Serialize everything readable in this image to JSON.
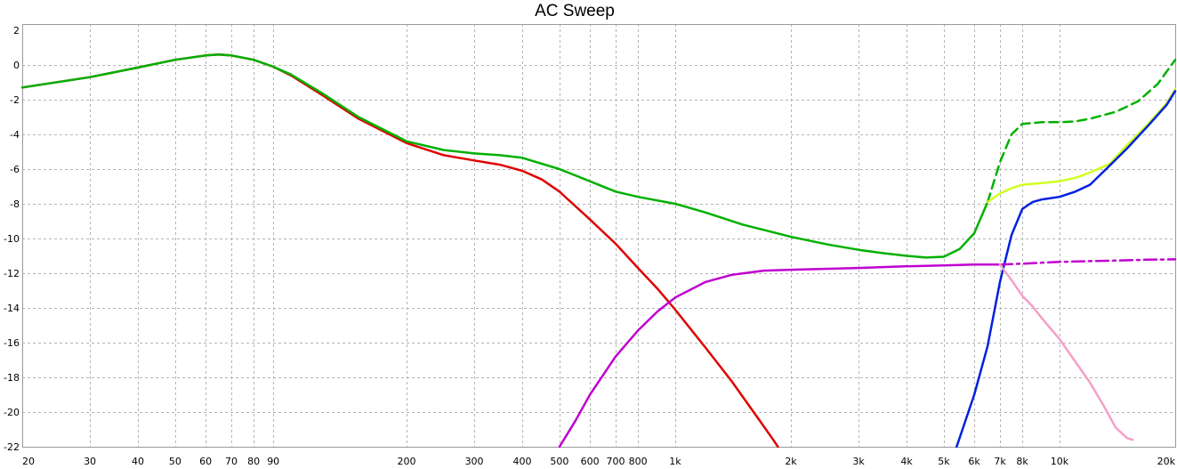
{
  "chart_data": {
    "type": "line",
    "title": "AC Sweep",
    "xscale": "log",
    "xlim": [
      20,
      20000
    ],
    "ylim": [
      -22,
      2
    ],
    "grid": true,
    "xticks": [
      {
        "value": 20,
        "label": "20"
      },
      {
        "value": 30,
        "label": "30"
      },
      {
        "value": 40,
        "label": "40"
      },
      {
        "value": 50,
        "label": "50"
      },
      {
        "value": 60,
        "label": "60"
      },
      {
        "value": 70,
        "label": "70"
      },
      {
        "value": 80,
        "label": "80"
      },
      {
        "value": 90,
        "label": "90"
      },
      {
        "value": 200,
        "label": "200"
      },
      {
        "value": 300,
        "label": "300"
      },
      {
        "value": 400,
        "label": "400"
      },
      {
        "value": 500,
        "label": "500"
      },
      {
        "value": 600,
        "label": "600"
      },
      {
        "value": 700,
        "label": "700"
      },
      {
        "value": 800,
        "label": "800"
      },
      {
        "value": 1000,
        "label": "1k"
      },
      {
        "value": 2000,
        "label": "2k"
      },
      {
        "value": 3000,
        "label": "3k"
      },
      {
        "value": 4000,
        "label": "4k"
      },
      {
        "value": 5000,
        "label": "5k"
      },
      {
        "value": 6000,
        "label": "6k"
      },
      {
        "value": 7000,
        "label": "7k"
      },
      {
        "value": 8000,
        "label": "8k"
      },
      {
        "value": 10000,
        "label": "10k"
      },
      {
        "value": 20000,
        "label": "20k"
      }
    ],
    "yticks": [
      2,
      0,
      -2,
      -4,
      -6,
      -8,
      -10,
      -12,
      -14,
      -16,
      -18,
      -20,
      -22
    ],
    "series": [
      {
        "color": "#e00000",
        "style": "solid",
        "points": [
          [
            20,
            -1.3
          ],
          [
            30,
            -0.7
          ],
          [
            40,
            -0.15
          ],
          [
            50,
            0.3
          ],
          [
            60,
            0.55
          ],
          [
            65,
            0.6
          ],
          [
            70,
            0.55
          ],
          [
            80,
            0.3
          ],
          [
            90,
            -0.1
          ],
          [
            100,
            -0.6
          ],
          [
            120,
            -1.7
          ],
          [
            150,
            -3.1
          ],
          [
            200,
            -4.5
          ],
          [
            250,
            -5.2
          ],
          [
            300,
            -5.5
          ],
          [
            350,
            -5.75
          ],
          [
            400,
            -6.1
          ],
          [
            450,
            -6.6
          ],
          [
            500,
            -7.3
          ],
          [
            600,
            -8.9
          ],
          [
            700,
            -10.3
          ],
          [
            800,
            -11.7
          ],
          [
            900,
            -12.9
          ],
          [
            1000,
            -14.1
          ],
          [
            1200,
            -16.3
          ],
          [
            1400,
            -18.2
          ],
          [
            1600,
            -20.0
          ],
          [
            1800,
            -21.6
          ],
          [
            1850,
            -22.0
          ]
        ]
      },
      {
        "color": "#00b000",
        "style": "solid",
        "points": [
          [
            20,
            -1.3
          ],
          [
            30,
            -0.7
          ],
          [
            40,
            -0.15
          ],
          [
            50,
            0.3
          ],
          [
            60,
            0.55
          ],
          [
            65,
            0.6
          ],
          [
            70,
            0.55
          ],
          [
            80,
            0.3
          ],
          [
            90,
            -0.1
          ],
          [
            100,
            -0.55
          ],
          [
            120,
            -1.6
          ],
          [
            150,
            -3.0
          ],
          [
            200,
            -4.4
          ],
          [
            250,
            -4.9
          ],
          [
            300,
            -5.1
          ],
          [
            350,
            -5.2
          ],
          [
            400,
            -5.35
          ],
          [
            500,
            -6.0
          ],
          [
            600,
            -6.7
          ],
          [
            700,
            -7.3
          ],
          [
            800,
            -7.6
          ],
          [
            1000,
            -8.0
          ],
          [
            1200,
            -8.5
          ],
          [
            1500,
            -9.2
          ],
          [
            2000,
            -9.9
          ],
          [
            2500,
            -10.35
          ],
          [
            3000,
            -10.65
          ],
          [
            3500,
            -10.85
          ],
          [
            4000,
            -11.0
          ],
          [
            4500,
            -11.1
          ],
          [
            5000,
            -11.05
          ],
          [
            5500,
            -10.6
          ],
          [
            6000,
            -9.7
          ],
          [
            6500,
            -7.9
          ]
        ]
      },
      {
        "color": "#00b000",
        "style": "dashed",
        "points": [
          [
            6500,
            -7.9
          ],
          [
            7000,
            -5.6
          ],
          [
            7500,
            -4.0
          ],
          [
            8000,
            -3.4
          ],
          [
            9000,
            -3.3
          ],
          [
            10000,
            -3.3
          ],
          [
            11000,
            -3.25
          ],
          [
            12000,
            -3.1
          ],
          [
            14000,
            -2.7
          ],
          [
            16000,
            -2.1
          ],
          [
            18000,
            -1.1
          ],
          [
            20000,
            0.3
          ]
        ]
      },
      {
        "color": "#d0ff20",
        "style": "solid",
        "points": [
          [
            6500,
            -7.9
          ],
          [
            7000,
            -7.4
          ],
          [
            7500,
            -7.1
          ],
          [
            8000,
            -6.9
          ],
          [
            9000,
            -6.8
          ],
          [
            10000,
            -6.7
          ],
          [
            11000,
            -6.5
          ],
          [
            12000,
            -6.2
          ],
          [
            13500,
            -5.7
          ],
          [
            15000,
            -4.6
          ],
          [
            17000,
            -3.4
          ],
          [
            19000,
            -2.2
          ],
          [
            20000,
            -1.4
          ]
        ]
      },
      {
        "color": "#0020e0",
        "style": "solid",
        "points": [
          [
            5400,
            -22.0
          ],
          [
            6000,
            -19.0
          ],
          [
            6500,
            -16.2
          ],
          [
            7000,
            -12.5
          ],
          [
            7500,
            -9.8
          ],
          [
            8000,
            -8.3
          ],
          [
            8500,
            -7.9
          ],
          [
            9000,
            -7.75
          ],
          [
            10000,
            -7.6
          ],
          [
            11000,
            -7.3
          ],
          [
            12000,
            -6.9
          ],
          [
            13500,
            -5.8
          ],
          [
            15000,
            -4.8
          ],
          [
            17000,
            -3.5
          ],
          [
            19000,
            -2.3
          ],
          [
            20000,
            -1.5
          ]
        ]
      },
      {
        "color": "#c000d0",
        "style": "solid",
        "points": [
          [
            500,
            -22.0
          ],
          [
            550,
            -20.5
          ],
          [
            600,
            -19.0
          ],
          [
            700,
            -16.8
          ],
          [
            800,
            -15.3
          ],
          [
            900,
            -14.2
          ],
          [
            1000,
            -13.4
          ],
          [
            1200,
            -12.5
          ],
          [
            1400,
            -12.1
          ],
          [
            1700,
            -11.85
          ],
          [
            2000,
            -11.8
          ],
          [
            3000,
            -11.7
          ],
          [
            4000,
            -11.6
          ],
          [
            5000,
            -11.55
          ],
          [
            6000,
            -11.5
          ],
          [
            7000,
            -11.5
          ]
        ]
      },
      {
        "color": "#c000d0",
        "style": "dashdot",
        "points": [
          [
            7000,
            -11.5
          ],
          [
            8000,
            -11.45
          ],
          [
            10000,
            -11.35
          ],
          [
            12000,
            -11.3
          ],
          [
            14000,
            -11.27
          ],
          [
            17000,
            -11.22
          ],
          [
            20000,
            -11.2
          ]
        ]
      },
      {
        "color": "#f4a0c8",
        "style": "solid",
        "points": [
          [
            7000,
            -11.5
          ],
          [
            7500,
            -12.4
          ],
          [
            8000,
            -13.3
          ],
          [
            8500,
            -13.9
          ],
          [
            9000,
            -14.6
          ],
          [
            10000,
            -15.8
          ],
          [
            11000,
            -17.1
          ],
          [
            12000,
            -18.3
          ],
          [
            13000,
            -19.6
          ],
          [
            14000,
            -20.9
          ],
          [
            15000,
            -21.5
          ],
          [
            15500,
            -21.6
          ]
        ]
      }
    ]
  }
}
